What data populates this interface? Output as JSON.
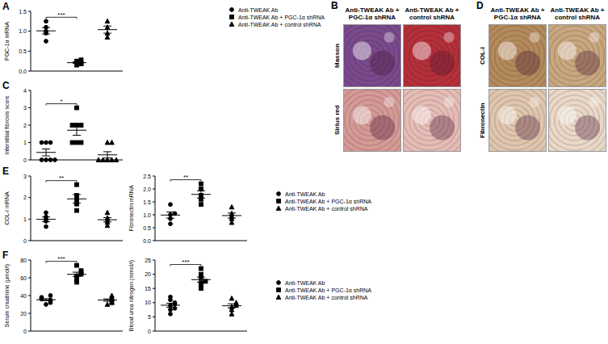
{
  "chart_data": [
    {
      "type": "scatter",
      "panel": "A",
      "y_label": "PGC-1α mRNA",
      "ylim": [
        0,
        1.5
      ],
      "yticks": [
        {
          "value": 0,
          "label": "0.0"
        },
        {
          "value": 0.5,
          "label": "0.5"
        },
        {
          "value": 1,
          "label": "1.0"
        },
        {
          "value": 1.5,
          "label": "1.5"
        }
      ],
      "tick_labels": "y",
      "legend": "right",
      "annotations": [
        {
          "text": "***",
          "between": [
            0,
            1
          ]
        }
      ],
      "series": [
        {
          "name": "Anti-TWEAK Ab",
          "marker": "circle",
          "color": "#000000",
          "values": [
            0.75,
            0.95,
            1.0,
            1.1,
            1.25
          ],
          "mean": 1.01,
          "sem": 0.08
        },
        {
          "name": "Anti-TWEAK Ab + PGC-1α shRNA",
          "marker": "square",
          "color": "#000000",
          "values": [
            0.15,
            0.18,
            0.2,
            0.25,
            0.28
          ],
          "mean": 0.21,
          "sem": 0.02
        },
        {
          "name": "Anti-TWEAK Ab + control shRNA",
          "marker": "triangle",
          "color": "#000000",
          "values": [
            0.85,
            0.95,
            1.1,
            1.25
          ],
          "mean": 1.04,
          "sem": 0.09
        }
      ]
    },
    {
      "type": "scatter",
      "panel": "C",
      "y_label": "Interstitial fibrosis score",
      "ylim": [
        0,
        4
      ],
      "yticks": [
        0,
        1,
        2,
        3,
        4
      ],
      "tick_labels": "y",
      "annotations": [
        {
          "text": "*",
          "between": [
            0,
            1
          ]
        }
      ],
      "series": [
        {
          "marker": "circle",
          "color": "#000000",
          "values": [
            0,
            0,
            0,
            0,
            1,
            1,
            1
          ],
          "mean": 0.43,
          "sem": 0.2
        },
        {
          "marker": "square",
          "color": "#000000",
          "values": [
            1,
            1,
            1,
            2,
            2,
            2,
            3
          ],
          "mean": 1.71,
          "sem": 0.29
        },
        {
          "marker": "triangle",
          "color": "#000000",
          "values": [
            0,
            0,
            0,
            0,
            0,
            1,
            1
          ],
          "mean": 0.29,
          "sem": 0.18
        }
      ]
    },
    {
      "type": "scatter",
      "panel": "E",
      "y_label": "COL-I mRNA",
      "ylim": [
        0,
        3
      ],
      "yticks": [
        0,
        1,
        2,
        3
      ],
      "tick_labels": "y",
      "annotations": [
        {
          "text": "**",
          "between": [
            0,
            1
          ]
        }
      ],
      "series": [
        {
          "marker": "circle",
          "color": "#000000",
          "values": [
            0.65,
            0.9,
            1.0,
            1.1,
            1.3
          ],
          "mean": 0.99,
          "sem": 0.11
        },
        {
          "marker": "square",
          "color": "#000000",
          "values": [
            1.4,
            1.7,
            1.9,
            2.1,
            2.6
          ],
          "mean": 1.94,
          "sem": 0.2
        },
        {
          "marker": "triangle",
          "color": "#000000",
          "values": [
            0.7,
            0.85,
            0.95,
            1.05,
            1.3
          ],
          "mean": 0.97,
          "sem": 0.1
        }
      ]
    },
    {
      "type": "scatter",
      "y_label": "Fibronectin mRNA",
      "ylim": [
        0,
        2.5
      ],
      "yticks": [
        {
          "value": 0,
          "label": "0.0"
        },
        {
          "value": 0.5,
          "label": "0.5"
        },
        {
          "value": 1,
          "label": "1.0"
        },
        {
          "value": 1.5,
          "label": "1.5"
        },
        {
          "value": 2,
          "label": "2.0"
        },
        {
          "value": 2.5,
          "label": "2.5"
        }
      ],
      "tick_labels": "y",
      "legend": "right",
      "annotations": [
        {
          "text": "**",
          "between": [
            0,
            1
          ]
        }
      ],
      "series": [
        {
          "name": "Anti-TWEAK Ab",
          "marker": "circle",
          "color": "#000000",
          "values": [
            0.65,
            0.85,
            1.0,
            1.05,
            1.4
          ],
          "mean": 0.99,
          "sem": 0.12
        },
        {
          "name": "Anti-TWEAK Ab + PGC-1α shRNA",
          "marker": "square",
          "color": "#000000",
          "values": [
            1.4,
            1.6,
            1.75,
            2.0,
            2.2
          ],
          "mean": 1.79,
          "sem": 0.14
        },
        {
          "name": "Anti-TWEAK Ab + control shRNA",
          "marker": "triangle",
          "color": "#000000",
          "values": [
            0.7,
            0.85,
            0.95,
            1.05,
            1.3
          ],
          "mean": 0.97,
          "sem": 0.1
        }
      ]
    },
    {
      "type": "scatter",
      "panel": "F",
      "y_label": "Serum creatinine (μmol/l)",
      "ylim": [
        0,
        80
      ],
      "yticks": [
        0,
        20,
        40,
        60,
        80
      ],
      "tick_labels": "y",
      "annotations": [
        {
          "text": "***",
          "between": [
            0,
            1
          ]
        }
      ],
      "series": [
        {
          "marker": "circle",
          "color": "#000000",
          "values": [
            30,
            32,
            34,
            35,
            36,
            37,
            38,
            40
          ],
          "mean": 35.3,
          "sem": 1.1
        },
        {
          "marker": "square",
          "color": "#000000",
          "values": [
            55,
            58,
            62,
            64,
            66,
            68,
            74
          ],
          "mean": 63.9,
          "sem": 2.4
        },
        {
          "marker": "triangle",
          "color": "#000000",
          "values": [
            30,
            32,
            33,
            35,
            36,
            38,
            40
          ],
          "mean": 34.9,
          "sem": 1.3
        }
      ]
    },
    {
      "type": "scatter",
      "y_label": "Blood urea nitrogen (mmol/l)",
      "ylim": [
        0,
        25
      ],
      "yticks": [
        0,
        5,
        10,
        15,
        20,
        25
      ],
      "tick_labels": "y",
      "legend": "right",
      "annotations": [
        {
          "text": "***",
          "between": [
            0,
            1
          ]
        }
      ],
      "series": [
        {
          "name": "Anti-TWEAK Ab",
          "marker": "circle",
          "color": "#000000",
          "values": [
            6,
            7.5,
            8,
            9,
            9.5,
            10,
            11,
            12
          ],
          "mean": 9.1,
          "sem": 0.7
        },
        {
          "name": "Anti-TWEAK Ab + PGC-1α shRNA",
          "marker": "square",
          "color": "#000000",
          "values": [
            15,
            16,
            17,
            17.5,
            19,
            20,
            22
          ],
          "mean": 18.1,
          "sem": 0.9
        },
        {
          "name": "Anti-TWEAK Ab + control shRNA",
          "marker": "triangle",
          "color": "#000000",
          "values": [
            6,
            7.5,
            8.5,
            9,
            9.5,
            10,
            11.5
          ],
          "mean": 8.9,
          "sem": 0.7
        }
      ]
    }
  ],
  "micrographs": [
    {
      "panel": "B",
      "columns": [
        "Anti-TWEAK Ab + PGC-1α shRNA",
        "Anti-TWEAK Ab + control shRNA"
      ],
      "rows": [
        "Masson",
        "Sirius red"
      ]
    },
    {
      "panel": "D",
      "columns": [
        "Anti-TWEAK Ab + PGC-1α shRNA",
        "Anti-TWEAK Ab + control shRNA"
      ],
      "rows": [
        "COL-I",
        "Fibronectin"
      ]
    }
  ]
}
